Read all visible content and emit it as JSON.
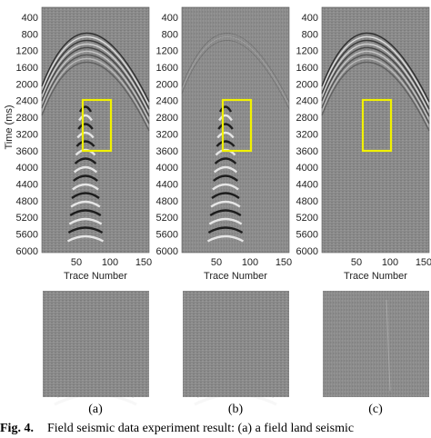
{
  "figure": {
    "y_label": "Time (ms)",
    "panels": [
      {
        "yticks": [
          400,
          800,
          1200,
          1600,
          2000,
          2400,
          2800,
          3200,
          3600,
          4000,
          4400,
          4800,
          5200,
          5600,
          6000
        ],
        "xticks": [
          50,
          100,
          150
        ],
        "x_label": "Trace Number",
        "label": "(a)"
      },
      {
        "yticks": [
          400,
          800,
          1200,
          1600,
          2000,
          2400,
          2800,
          3200,
          3600,
          4000,
          4400,
          4800,
          5200,
          5600,
          6000
        ],
        "xticks": [
          50,
          100,
          150
        ],
        "x_label": "Trace Number",
        "label": "(b)"
      },
      {
        "yticks": [
          400,
          800,
          1200,
          1600,
          2000,
          2400,
          2800,
          3200,
          3600,
          4000,
          4400,
          4800,
          5200,
          5600,
          6000
        ],
        "xticks": [
          50,
          100,
          150
        ],
        "x_label": "Trace Number",
        "label": "(c)"
      }
    ],
    "caption": {
      "label": "Fig. 4.",
      "text": "Field seismic data experiment result: (a) a field land seismic"
    }
  }
}
